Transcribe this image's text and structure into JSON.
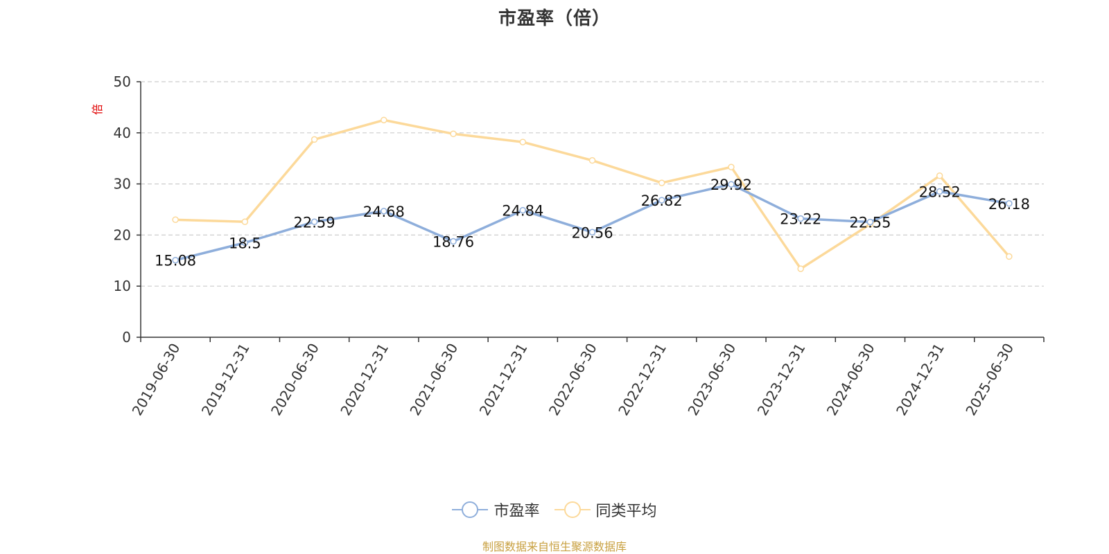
{
  "chart_data": {
    "type": "line",
    "title": "市盈率（倍）",
    "ylabel": "倍",
    "xlabel": "",
    "ylim": [
      0,
      50
    ],
    "yticks": [
      0,
      10,
      20,
      30,
      40,
      50
    ],
    "grid": true,
    "legend_position": "bottom",
    "categories": [
      "2019-06-30",
      "2019-12-31",
      "2020-06-30",
      "2020-12-31",
      "2021-06-30",
      "2021-12-31",
      "2022-06-30",
      "2022-12-31",
      "2023-06-30",
      "2023-12-31",
      "2024-06-30",
      "2024-12-31",
      "2025-06-30"
    ],
    "series": [
      {
        "name": "市盈率",
        "color": "#8eaedb",
        "show_labels": true,
        "values": [
          15.08,
          18.5,
          22.59,
          24.68,
          18.76,
          24.84,
          20.56,
          26.82,
          29.92,
          23.22,
          22.55,
          28.52,
          26.18
        ],
        "labels": [
          "15.08",
          "18.5",
          "22.59",
          "24.68",
          "18.76",
          "24.84",
          "20.56",
          "26.82",
          "29.92",
          "23.22",
          "22.55",
          "28.52",
          "26.18"
        ]
      },
      {
        "name": "同类平均",
        "color": "#fcd99a",
        "show_labels": false,
        "values": [
          23.0,
          22.6,
          38.7,
          42.5,
          39.8,
          38.2,
          34.6,
          30.2,
          33.3,
          13.4,
          22.1,
          31.6,
          15.8
        ]
      }
    ]
  },
  "colors": {
    "axis": "#333333",
    "grid": "#cccccc",
    "ylabel": "#e00000",
    "source": "#c8a040"
  },
  "source_text": "制图数据来自恒生聚源数据库"
}
